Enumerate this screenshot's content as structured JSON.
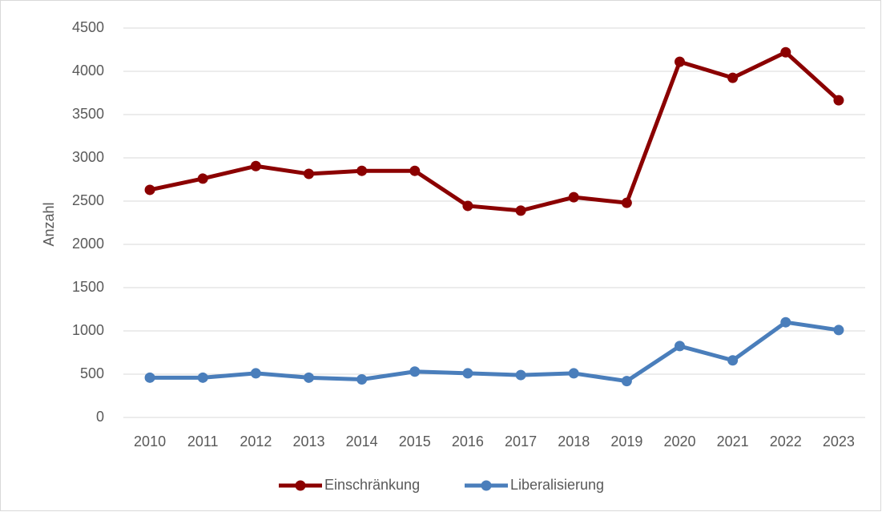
{
  "chart_data": {
    "type": "line",
    "y_label": "Anzahl",
    "categories": [
      "2010",
      "2011",
      "2012",
      "2013",
      "2014",
      "2015",
      "2016",
      "2017",
      "2018",
      "2019",
      "2020",
      "2021",
      "2022",
      "2023"
    ],
    "series": [
      {
        "name": "Einschränkung",
        "color": "#8b0000",
        "values": [
          2630,
          2760,
          2905,
          2815,
          2850,
          2850,
          2445,
          2390,
          2545,
          2480,
          4110,
          3925,
          4220,
          3665
        ]
      },
      {
        "name": "Liberalisierung",
        "color": "#4a7ebb",
        "values": [
          460,
          460,
          510,
          460,
          440,
          530,
          510,
          490,
          510,
          420,
          825,
          660,
          1100,
          1010
        ]
      }
    ],
    "ylim": [
      0,
      4500
    ],
    "yticks": [
      0,
      500,
      1000,
      1500,
      2000,
      2500,
      3000,
      3500,
      4000,
      4500
    ],
    "grid": true,
    "legend": "bottom"
  }
}
